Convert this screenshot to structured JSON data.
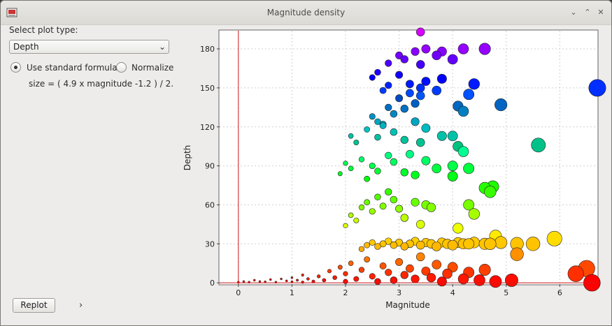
{
  "window": {
    "title": "Magnitude density"
  },
  "controls": {
    "plot_type_label": "Select plot type:",
    "plot_type_value": "Depth",
    "radio_standard": "Use standard formula",
    "radio_normalize": "Normalize",
    "formula": "size = ( 4.9 x magnitude -1.2 ) / 2.",
    "replot": "Replot",
    "expand": "›"
  },
  "chart_data": {
    "type": "scatter",
    "xlabel": "Magnitude",
    "ylabel": "Depth",
    "xlim": [
      -0.35,
      6.7
    ],
    "ylim": [
      -1,
      194
    ],
    "xticks": [
      0,
      1,
      2,
      3,
      4,
      5,
      6
    ],
    "yticks": [
      0,
      30,
      60,
      90,
      120,
      150,
      180
    ],
    "grid": true,
    "color_encoding": "depth (red shallow → violet deep)",
    "size_encoding": "magnitude",
    "points": [
      [
        0.0,
        0.5
      ],
      [
        0.1,
        1
      ],
      [
        0.2,
        0.5
      ],
      [
        0.3,
        2
      ],
      [
        0.4,
        1
      ],
      [
        0.5,
        0.8
      ],
      [
        0.6,
        2.5
      ],
      [
        0.7,
        0.5
      ],
      [
        0.8,
        3
      ],
      [
        0.9,
        1.5
      ],
      [
        1.0,
        0.8
      ],
      [
        1.0,
        4
      ],
      [
        1.1,
        2
      ],
      [
        1.2,
        0.5
      ],
      [
        1.2,
        6
      ],
      [
        1.3,
        3
      ],
      [
        1.4,
        1
      ],
      [
        1.5,
        5
      ],
      [
        1.6,
        2
      ],
      [
        1.7,
        9
      ],
      [
        1.8,
        4
      ],
      [
        1.9,
        12
      ],
      [
        2.0,
        1
      ],
      [
        2.0,
        7
      ],
      [
        2.1,
        15
      ],
      [
        2.2,
        3
      ],
      [
        2.3,
        10
      ],
      [
        2.4,
        18
      ],
      [
        2.5,
        5
      ],
      [
        2.6,
        1
      ],
      [
        2.7,
        13
      ],
      [
        2.8,
        8
      ],
      [
        2.9,
        2
      ],
      [
        3.0,
        16
      ],
      [
        3.1,
        6
      ],
      [
        3.2,
        11
      ],
      [
        3.3,
        3
      ],
      [
        3.4,
        20
      ],
      [
        3.5,
        9
      ],
      [
        3.6,
        4
      ],
      [
        3.7,
        14
      ],
      [
        3.8,
        1
      ],
      [
        3.9,
        7
      ],
      [
        4.0,
        12
      ],
      [
        4.2,
        3
      ],
      [
        4.3,
        8
      ],
      [
        4.5,
        2
      ],
      [
        4.6,
        10
      ],
      [
        4.8,
        1
      ],
      [
        5.1,
        2
      ],
      [
        2.3,
        26
      ],
      [
        2.4,
        29
      ],
      [
        2.5,
        31
      ],
      [
        2.6,
        28
      ],
      [
        2.7,
        30
      ],
      [
        2.8,
        32
      ],
      [
        2.9,
        29
      ],
      [
        3.0,
        31
      ],
      [
        3.1,
        28
      ],
      [
        3.2,
        30
      ],
      [
        3.3,
        32
      ],
      [
        3.4,
        29
      ],
      [
        3.5,
        31
      ],
      [
        3.6,
        30
      ],
      [
        3.7,
        28
      ],
      [
        3.8,
        31
      ],
      [
        3.9,
        30
      ],
      [
        4.0,
        29
      ],
      [
        4.1,
        31
      ],
      [
        4.2,
        30
      ],
      [
        4.3,
        30
      ],
      [
        4.4,
        31
      ],
      [
        4.6,
        30
      ],
      [
        4.7,
        30
      ],
      [
        4.9,
        31
      ],
      [
        5.2,
        30
      ],
      [
        5.5,
        30
      ],
      [
        5.9,
        34
      ],
      [
        5.2,
        22
      ],
      [
        4.8,
        36
      ],
      [
        2.0,
        44
      ],
      [
        2.1,
        52
      ],
      [
        2.2,
        48
      ],
      [
        2.3,
        58
      ],
      [
        2.4,
        62
      ],
      [
        2.5,
        55
      ],
      [
        2.6,
        66
      ],
      [
        2.7,
        59
      ],
      [
        2.8,
        70
      ],
      [
        2.9,
        64
      ],
      [
        3.0,
        57
      ],
      [
        3.1,
        50
      ],
      [
        3.3,
        62
      ],
      [
        3.4,
        45
      ],
      [
        3.5,
        60
      ],
      [
        3.6,
        58
      ],
      [
        4.1,
        42
      ],
      [
        4.3,
        60
      ],
      [
        4.4,
        53
      ],
      [
        4.7,
        70
      ],
      [
        1.9,
        84
      ],
      [
        2.0,
        92
      ],
      [
        2.1,
        88
      ],
      [
        2.3,
        95
      ],
      [
        2.4,
        80
      ],
      [
        2.5,
        90
      ],
      [
        2.6,
        86
      ],
      [
        2.8,
        98
      ],
      [
        2.9,
        93
      ],
      [
        3.1,
        85
      ],
      [
        3.2,
        99
      ],
      [
        3.3,
        83
      ],
      [
        3.5,
        94
      ],
      [
        3.7,
        88
      ],
      [
        4.0,
        82
      ],
      [
        4.3,
        88
      ],
      [
        4.6,
        73
      ],
      [
        4.75,
        74
      ],
      [
        2.1,
        113
      ],
      [
        2.2,
        108
      ],
      [
        2.4,
        118
      ],
      [
        2.6,
        112
      ],
      [
        2.7,
        122
      ],
      [
        2.9,
        116
      ],
      [
        3.1,
        110
      ],
      [
        3.3,
        124
      ],
      [
        3.4,
        108
      ],
      [
        3.5,
        119
      ],
      [
        3.8,
        113
      ],
      [
        4.0,
        113
      ],
      [
        4.1,
        105
      ],
      [
        4.2,
        101
      ],
      [
        4.0,
        90
      ],
      [
        5.6,
        106
      ],
      [
        2.5,
        128
      ],
      [
        2.6,
        124
      ],
      [
        2.7,
        121
      ],
      [
        2.8,
        135
      ],
      [
        2.9,
        130
      ],
      [
        3.0,
        142
      ],
      [
        3.1,
        134
      ],
      [
        3.2,
        146
      ],
      [
        3.3,
        138
      ],
      [
        3.4,
        150
      ],
      [
        3.5,
        155
      ],
      [
        2.5,
        158
      ],
      [
        2.6,
        162
      ],
      [
        2.7,
        148
      ],
      [
        2.8,
        152
      ],
      [
        3.0,
        160
      ],
      [
        3.2,
        153
      ],
      [
        3.4,
        144
      ],
      [
        3.7,
        148
      ],
      [
        3.8,
        157
      ],
      [
        4.1,
        136
      ],
      [
        4.2,
        132
      ],
      [
        4.3,
        145
      ],
      [
        4.4,
        153
      ],
      [
        4.9,
        137
      ],
      [
        6.7,
        150
      ],
      [
        2.8,
        169
      ],
      [
        3.0,
        175
      ],
      [
        3.1,
        172
      ],
      [
        3.3,
        178
      ],
      [
        3.4,
        168
      ],
      [
        3.5,
        180
      ],
      [
        3.7,
        175
      ],
      [
        3.8,
        178
      ],
      [
        4.0,
        172
      ],
      [
        4.2,
        180
      ],
      [
        4.6,
        180
      ],
      [
        3.4,
        193
      ],
      [
        6.3,
        7
      ],
      [
        6.5,
        11
      ],
      [
        6.6,
        0
      ]
    ]
  }
}
